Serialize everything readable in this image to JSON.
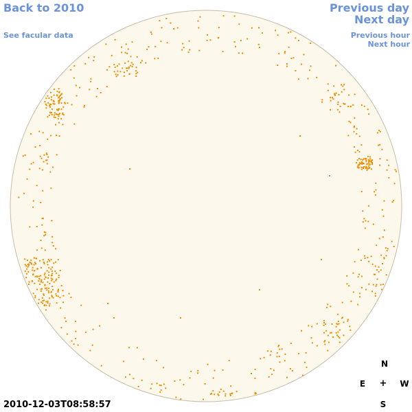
{
  "nav": {
    "back_to_year": "Back to 2010",
    "see_facular": "See facular data",
    "previous_day": "Previous day",
    "next_day": "Next day",
    "previous_hour": "Previous hour",
    "next_hour": "Next hour"
  },
  "timestamp": "2010-12-03T08:58:57",
  "compass": {
    "north": "N",
    "east": "E",
    "center": "+",
    "west": "W",
    "south": "S"
  },
  "colors": {
    "link": "#6b93dc",
    "disk_fill": "#fdf8ec",
    "disk_stroke": "#c8bca8",
    "facula": "#f08c00"
  },
  "icons": {
    "sun_disk": "solar-disk-icon",
    "compass_center": "plus-icon"
  }
}
